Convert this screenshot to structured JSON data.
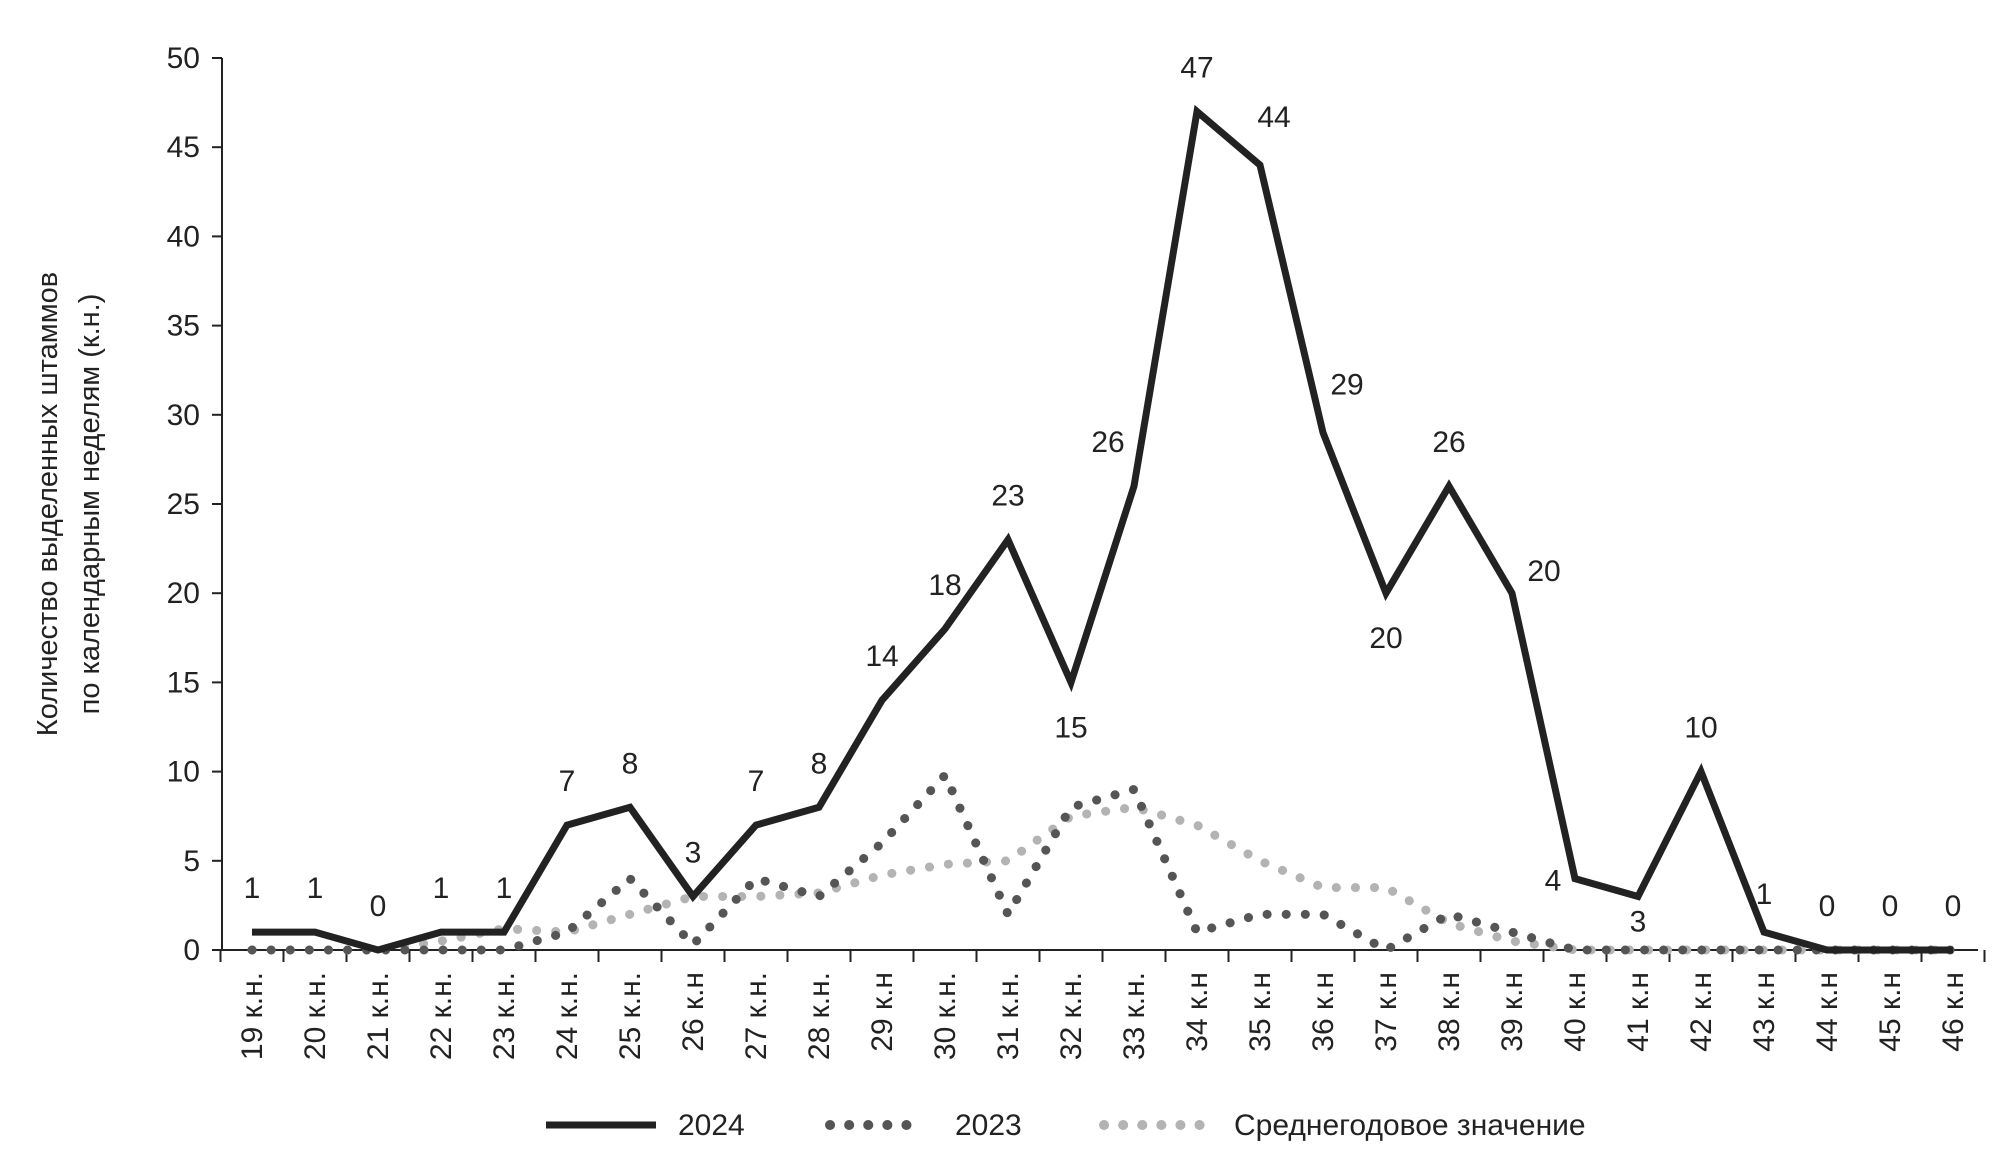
{
  "chart_data": {
    "type": "line",
    "title": "",
    "xlabel": "",
    "ylabel": [
      "Количество выделенных штаммов",
      "по календарным неделям (к.н.)"
    ],
    "ylim": [
      0,
      50
    ],
    "yticks": [
      0,
      5,
      10,
      15,
      20,
      25,
      30,
      35,
      40,
      45,
      50
    ],
    "grid": false,
    "legend_position": "bottom",
    "categories": [
      "19 к.н.",
      "20 к.н.",
      "21 к.н.",
      "22 к.н.",
      "23 к.н.",
      "24 к.н.",
      "25 к.н.",
      "26 к.н",
      "27 к.н.",
      "28 к.н.",
      "29 к.н",
      "30 к.н.",
      "31 к.н.",
      "32 к.н.",
      "33 к.н.",
      "34 к.н",
      "35 к.н",
      "36 к.н",
      "37 к.н",
      "38 к.н",
      "39 к.н",
      "40 к.н",
      "41 к.н",
      "42 к.н",
      "43 к.н",
      "44 к.н",
      "45 к.н",
      "46 к.н"
    ],
    "series": [
      {
        "name": "2024",
        "style": "solid",
        "color": "#222222",
        "values": [
          1,
          1,
          0,
          1,
          1,
          7,
          8,
          3,
          7,
          8,
          14,
          18,
          23,
          15,
          26,
          47,
          44,
          29,
          20,
          26,
          20,
          4,
          3,
          10,
          1,
          0,
          0,
          0
        ],
        "labels": [
          "1",
          "1",
          "0",
          "1",
          "1",
          "7",
          "8",
          "3",
          "7",
          "8",
          "14",
          "18",
          "23",
          "15",
          "26",
          "47",
          "44",
          "29",
          "20",
          "26",
          "20",
          "4",
          "3",
          "10",
          "1",
          "0",
          "0",
          "0"
        ]
      },
      {
        "name": "2023",
        "style": "dotted",
        "color": "#555555",
        "values": [
          0,
          0,
          0,
          0,
          0,
          1,
          4,
          0.3,
          4,
          3,
          6,
          9.8,
          2,
          8,
          9,
          1,
          2,
          2,
          0,
          2,
          1,
          0,
          0,
          0,
          0,
          0,
          0,
          0
        ]
      },
      {
        "name": "Среднегодовое значение",
        "style": "dotted",
        "color": "#b3b3b3",
        "values": [
          0,
          0,
          0,
          0.5,
          1.2,
          1,
          2,
          3,
          3,
          3.2,
          4.2,
          4.8,
          5,
          7.5,
          8,
          7,
          5,
          3.5,
          3.5,
          1.5,
          0.5,
          0,
          0,
          0,
          0,
          0,
          0,
          0
        ]
      }
    ]
  }
}
